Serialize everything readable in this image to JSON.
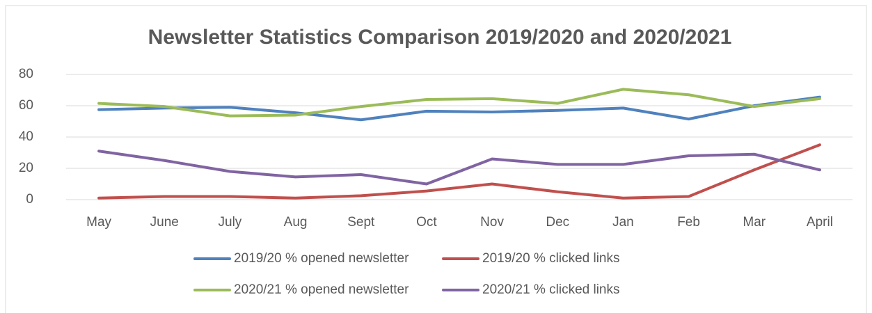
{
  "chart_data": {
    "type": "line",
    "title": "Newsletter Statistics Comparison 2019/2020 and 2020/2021",
    "categories": [
      "May",
      "June",
      "July",
      "Aug",
      "Sept",
      "Oct",
      "Nov",
      "Dec",
      "Jan",
      "Feb",
      "Mar",
      "April"
    ],
    "series": [
      {
        "name": "2019/20 % opened newsletter",
        "color": "#4f81bd",
        "values": [
          57.5,
          58.5,
          59,
          55.5,
          51,
          56.5,
          56,
          57,
          58.5,
          51.5,
          60,
          65.5
        ]
      },
      {
        "name": "2019/20 % clicked links",
        "color": "#c0504d",
        "values": [
          1,
          2,
          2,
          1,
          2.5,
          5.5,
          10,
          5,
          1,
          2,
          19,
          35
        ]
      },
      {
        "name": "2020/21 % opened newsletter",
        "color": "#9bbb59",
        "values": [
          61.5,
          59.5,
          53.5,
          54,
          59.5,
          64,
          64.5,
          61.5,
          70.5,
          67,
          59.5,
          64.5
        ]
      },
      {
        "name": "2020/21 % clicked links",
        "color": "#8064a2",
        "values": [
          31,
          25,
          18,
          14.5,
          16,
          10,
          26,
          22.5,
          22.5,
          28,
          29,
          19
        ]
      }
    ],
    "ylim": [
      0,
      80
    ],
    "yticks": [
      0,
      20,
      40,
      60,
      80
    ],
    "grid": true,
    "legend": "bottom"
  }
}
